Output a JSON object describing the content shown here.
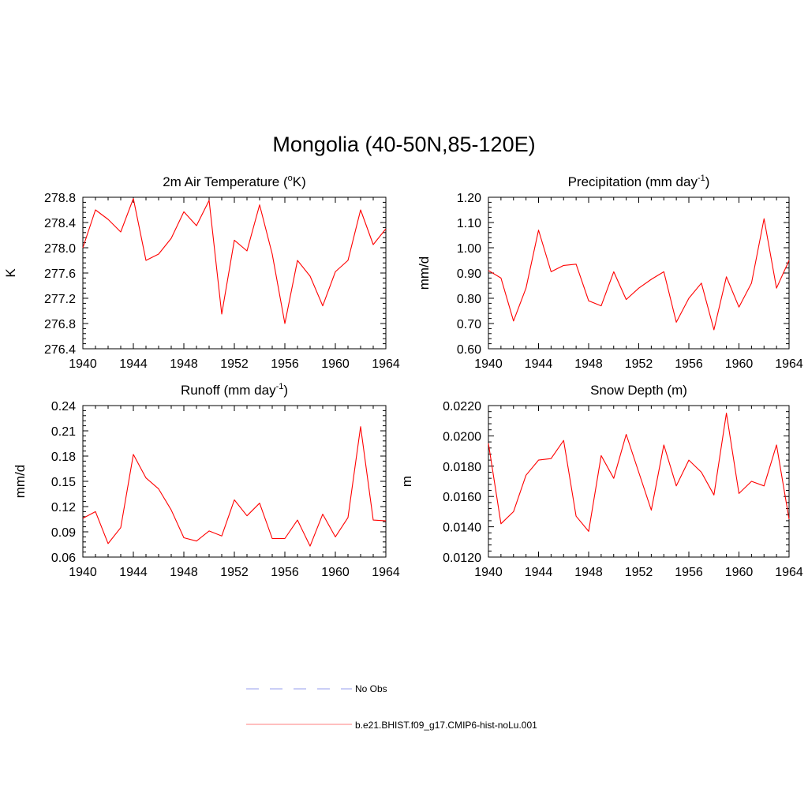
{
  "page": {
    "title": "Mongolia (40-50N,85-120E)"
  },
  "legend": {
    "items": [
      {
        "label": "No Obs",
        "style": "dashed",
        "color": "#aab0f0"
      },
      {
        "label": "b.e21.BHIST.f09_g17.CMIP6-hist-noLu.001",
        "style": "solid",
        "color": "#ff9999"
      }
    ]
  },
  "chart_data": [
    {
      "type": "line",
      "title": "2m Air Temperature (",
      "title_sup": "o",
      "title_suffix": "K)",
      "ylabel": "K",
      "xlim": [
        1940,
        1964
      ],
      "ylim": [
        276.4,
        278.8
      ],
      "xticks": [
        1940,
        1944,
        1948,
        1952,
        1956,
        1960,
        1964
      ],
      "xtick_labels": [
        "1940",
        "1944",
        "1948",
        "1952",
        "1956",
        "1960",
        "1964"
      ],
      "yticks": [
        276.4,
        276.8,
        277.2,
        277.6,
        278.0,
        278.4,
        278.8
      ],
      "ytick_labels": [
        "276.4",
        "276.8",
        "277.2",
        "277.6",
        "278.0",
        "278.4",
        "278.8"
      ],
      "series": [
        {
          "color": "#ff0000",
          "x": [
            1940,
            1941,
            1942,
            1943,
            1944,
            1945,
            1946,
            1947,
            1948,
            1949,
            1950,
            1951,
            1952,
            1953,
            1954,
            1955,
            1956,
            1957,
            1958,
            1959,
            1960,
            1961,
            1962,
            1963,
            1964
          ],
          "values": [
            278.0,
            278.6,
            278.45,
            278.25,
            278.78,
            277.8,
            277.9,
            278.15,
            278.57,
            278.35,
            278.75,
            276.95,
            278.12,
            277.95,
            278.68,
            277.9,
            276.8,
            277.8,
            277.55,
            277.08,
            277.62,
            277.8,
            278.6,
            278.05,
            278.3
          ]
        }
      ]
    },
    {
      "type": "line",
      "title": "Precipitation (mm day",
      "title_sup": "-1",
      "title_suffix": ")",
      "ylabel": "mm/d",
      "xlim": [
        1940,
        1964
      ],
      "ylim": [
        0.6,
        1.2
      ],
      "xticks": [
        1940,
        1944,
        1948,
        1952,
        1956,
        1960,
        1964
      ],
      "xtick_labels": [
        "1940",
        "1944",
        "1948",
        "1952",
        "1956",
        "1960",
        "1964"
      ],
      "yticks": [
        0.6,
        0.7,
        0.8,
        0.9,
        1.0,
        1.1,
        1.2
      ],
      "ytick_labels": [
        "0.60",
        "0.70",
        "0.80",
        "0.90",
        "1.00",
        "1.10",
        "1.20"
      ],
      "series": [
        {
          "color": "#ff0000",
          "x": [
            1940,
            1941,
            1942,
            1943,
            1944,
            1945,
            1946,
            1947,
            1948,
            1949,
            1950,
            1951,
            1952,
            1953,
            1954,
            1955,
            1956,
            1957,
            1958,
            1959,
            1960,
            1961,
            1962,
            1963,
            1964
          ],
          "values": [
            0.91,
            0.88,
            0.71,
            0.84,
            1.07,
            0.905,
            0.93,
            0.935,
            0.79,
            0.77,
            0.905,
            0.795,
            0.84,
            0.875,
            0.905,
            0.705,
            0.8,
            0.86,
            0.675,
            0.885,
            0.765,
            0.86,
            1.115,
            0.84,
            0.95
          ]
        }
      ]
    },
    {
      "type": "line",
      "title": "Runoff (mm day",
      "title_sup": "-1",
      "title_suffix": ")",
      "ylabel": "mm/d",
      "xlim": [
        1940,
        1964
      ],
      "ylim": [
        0.06,
        0.24
      ],
      "xticks": [
        1940,
        1944,
        1948,
        1952,
        1956,
        1960,
        1964
      ],
      "xtick_labels": [
        "1940",
        "1944",
        "1948",
        "1952",
        "1956",
        "1960",
        "1964"
      ],
      "yticks": [
        0.06,
        0.09,
        0.12,
        0.15,
        0.18,
        0.21,
        0.24
      ],
      "ytick_labels": [
        "0.06",
        "0.09",
        "0.12",
        "0.15",
        "0.18",
        "0.21",
        "0.24"
      ],
      "series": [
        {
          "color": "#ff0000",
          "x": [
            1940,
            1941,
            1942,
            1943,
            1944,
            1945,
            1946,
            1947,
            1948,
            1949,
            1950,
            1951,
            1952,
            1953,
            1954,
            1955,
            1956,
            1957,
            1958,
            1959,
            1960,
            1961,
            1962,
            1963,
            1964
          ],
          "values": [
            0.106,
            0.114,
            0.076,
            0.095,
            0.182,
            0.154,
            0.141,
            0.116,
            0.083,
            0.079,
            0.091,
            0.085,
            0.128,
            0.109,
            0.124,
            0.082,
            0.082,
            0.104,
            0.073,
            0.111,
            0.084,
            0.107,
            0.215,
            0.104,
            0.103
          ]
        }
      ]
    },
    {
      "type": "line",
      "title": "Snow Depth (m)",
      "title_sup": "",
      "title_suffix": "",
      "ylabel": "m",
      "xlim": [
        1940,
        1964
      ],
      "ylim": [
        0.012,
        0.022
      ],
      "xticks": [
        1940,
        1944,
        1948,
        1952,
        1956,
        1960,
        1964
      ],
      "xtick_labels": [
        "1940",
        "1944",
        "1948",
        "1952",
        "1956",
        "1960",
        "1964"
      ],
      "yticks": [
        0.012,
        0.014,
        0.016,
        0.018,
        0.02,
        0.022
      ],
      "ytick_labels": [
        "0.0120",
        "0.0140",
        "0.0160",
        "0.0180",
        "0.0200",
        "0.0220"
      ],
      "series": [
        {
          "color": "#ff0000",
          "x": [
            1940,
            1941,
            1942,
            1943,
            1944,
            1945,
            1946,
            1947,
            1948,
            1949,
            1950,
            1951,
            1952,
            1953,
            1954,
            1955,
            1956,
            1957,
            1958,
            1959,
            1960,
            1961,
            1962,
            1963,
            1964
          ],
          "values": [
            0.0195,
            0.0142,
            0.015,
            0.0174,
            0.0184,
            0.0185,
            0.0197,
            0.0147,
            0.0137,
            0.0187,
            0.0172,
            0.0201,
            0.0176,
            0.0151,
            0.0194,
            0.0167,
            0.0184,
            0.0176,
            0.0161,
            0.0215,
            0.0162,
            0.017,
            0.0167,
            0.0194,
            0.0145
          ]
        }
      ]
    }
  ]
}
